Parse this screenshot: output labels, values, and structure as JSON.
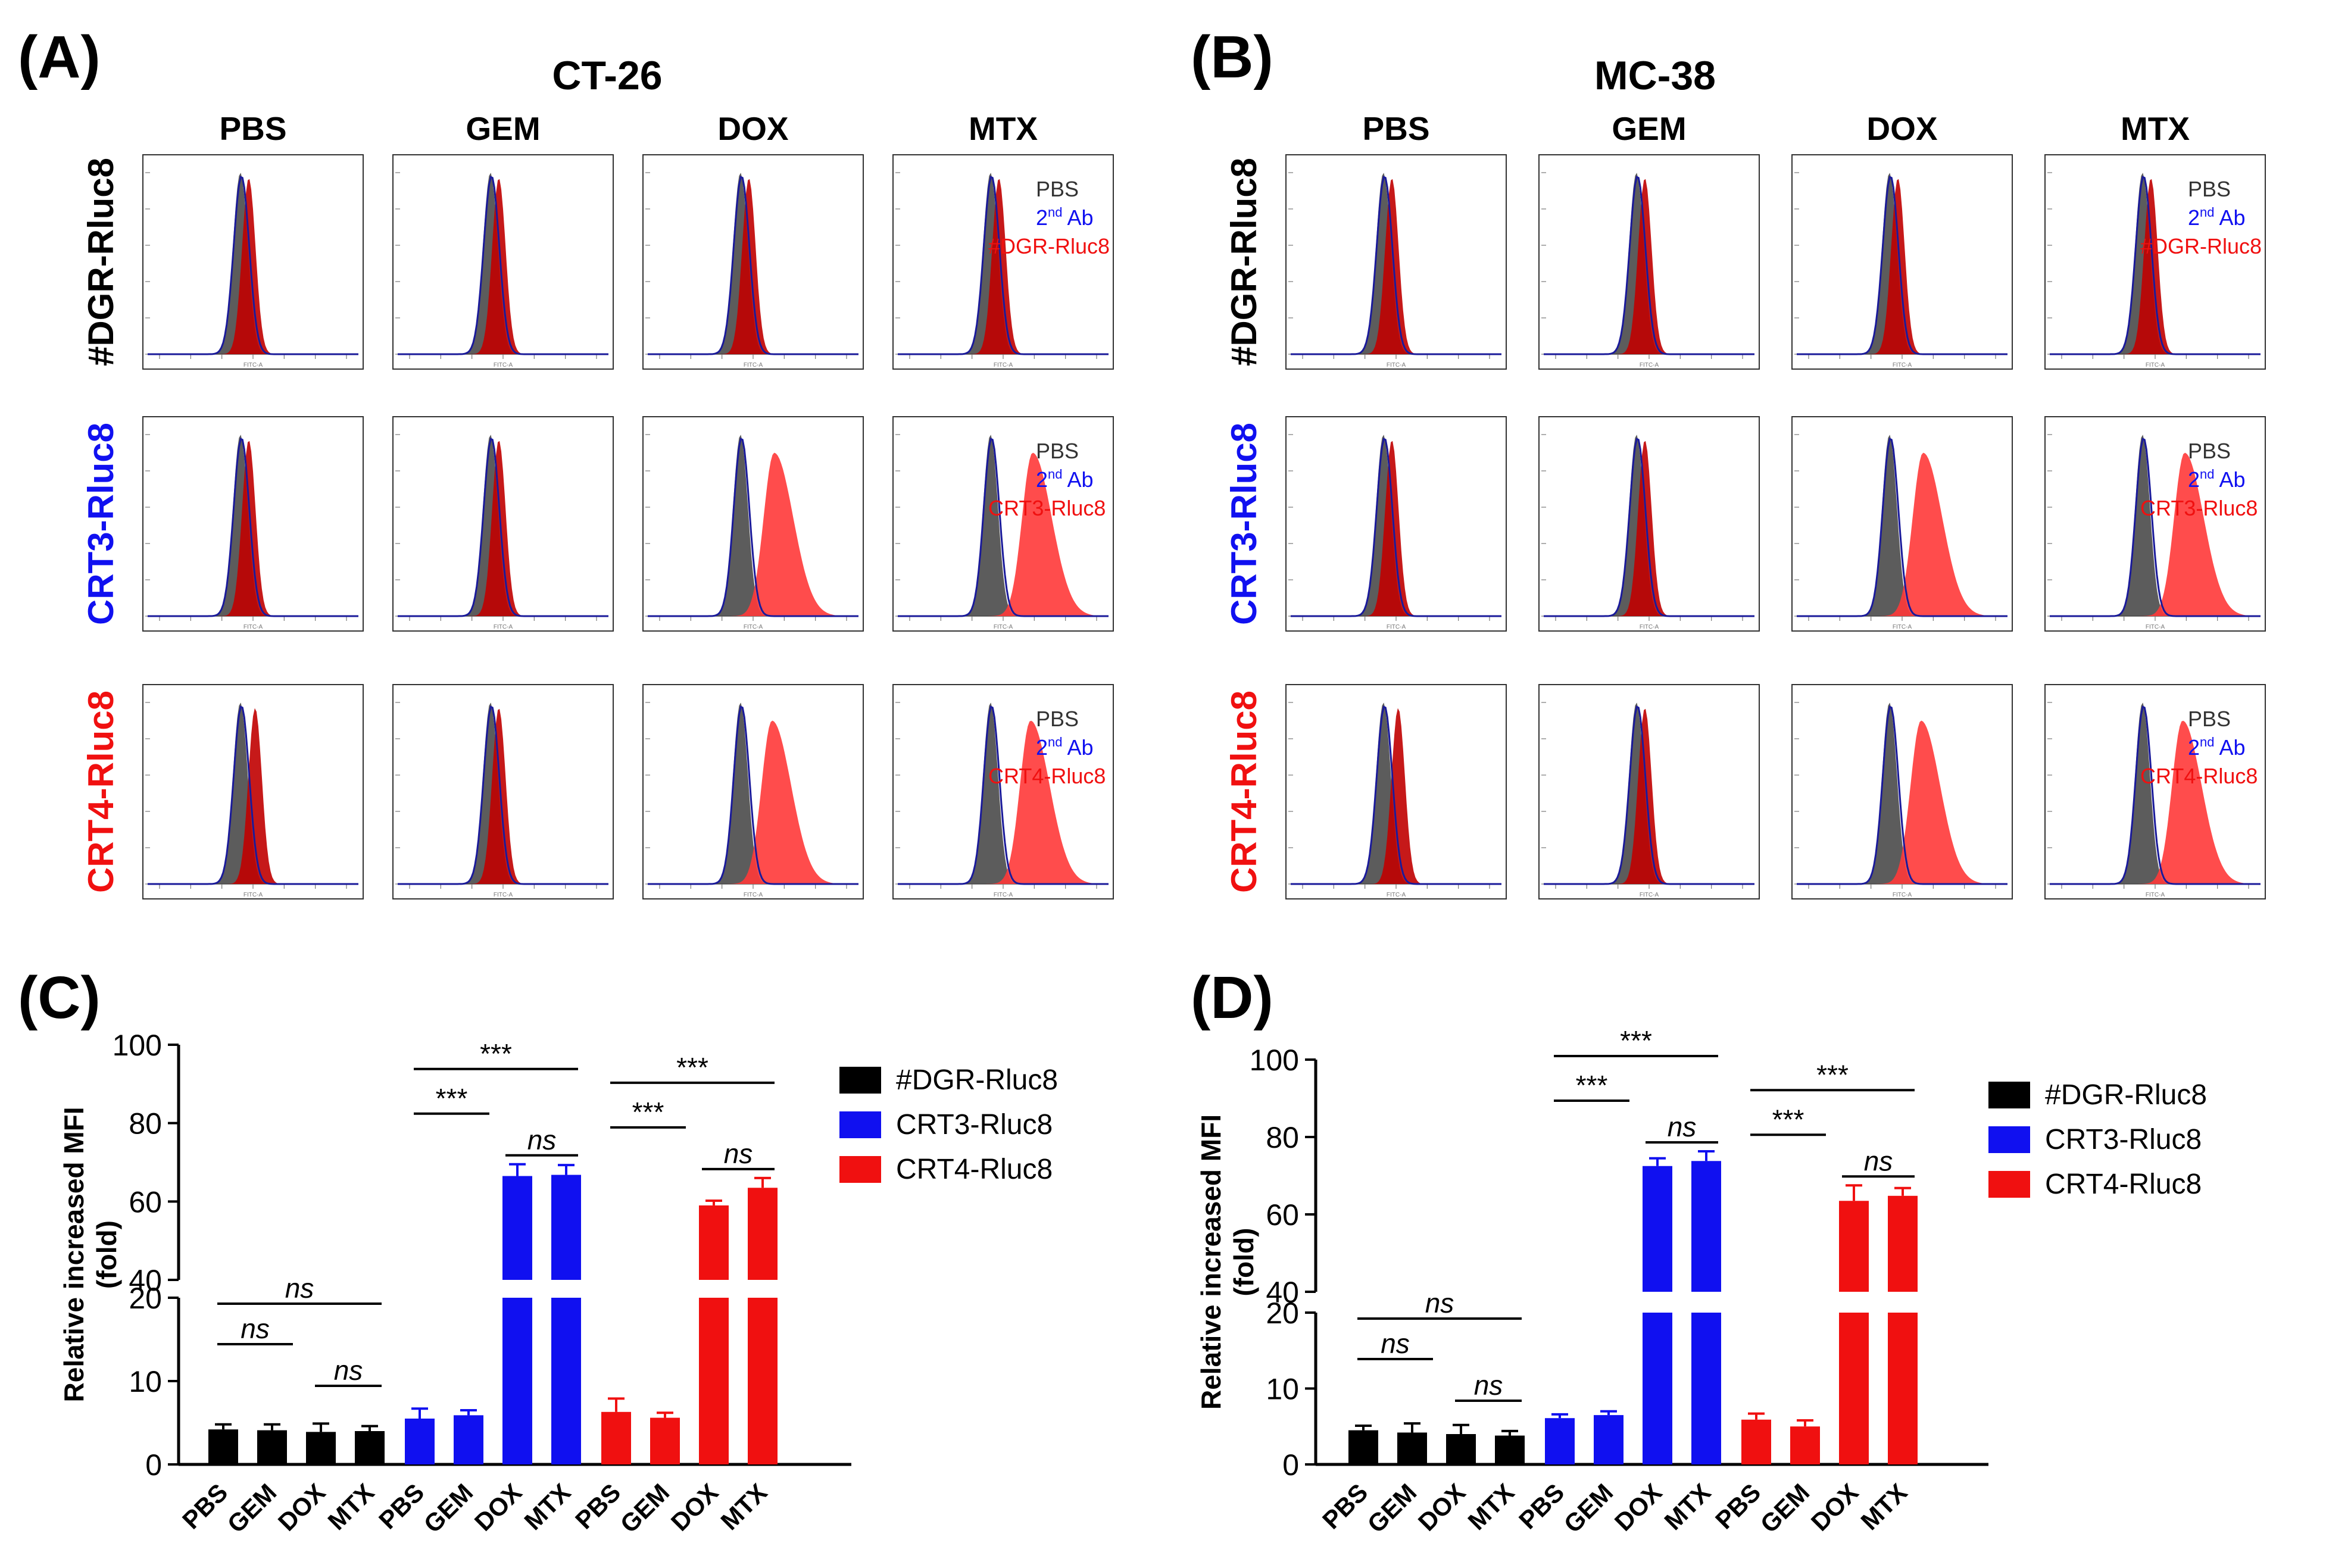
{
  "figure": {
    "panel_letters": {
      "A": "(A)",
      "B": "(B)",
      "C": "(C)",
      "D": "(D)"
    },
    "colors": {
      "probe_1": "#000000",
      "probe_2": "#1010f0",
      "probe_3": "#f01010",
      "pbs_fill": "#404040",
      "sample_fill": "#c00000",
      "shift_fill": "#ff3838",
      "ab_line": "#1a1a9a"
    }
  },
  "chart_data": [
    {
      "type": "histogram-grid",
      "panel": "A",
      "title": "CT-26",
      "columns": [
        "PBS",
        "GEM",
        "DOX",
        "MTX"
      ],
      "rows": [
        "#DGR-Rluc8",
        "CRT3-Rluc8",
        "CRT4-Rluc8"
      ],
      "axis_label": "FITC-A",
      "legend": [
        "PBS",
        "2nd Ab",
        "#DGR-Rluc8",
        "CRT3-Rluc8",
        "CRT4-Rluc8"
      ],
      "legend_sup": "nd",
      "legend_base": "2",
      "legend_ab": "Ab"
    },
    {
      "type": "histogram-grid",
      "panel": "B",
      "title": "MC-38",
      "columns": [
        "PBS",
        "GEM",
        "DOX",
        "MTX"
      ],
      "rows": [
        "#DGR-Rluc8",
        "CRT3-Rluc8",
        "CRT4-Rluc8"
      ],
      "axis_label": "FITC-A",
      "legend": [
        "PBS",
        "2nd Ab",
        "#DGR-Rluc8",
        "CRT3-Rluc8",
        "CRT4-Rluc8"
      ],
      "legend_sup": "nd",
      "legend_base": "2",
      "legend_ab": "Ab"
    },
    {
      "type": "bar",
      "panel": "C",
      "ylabel": "Relative increased MFI",
      "ylabel2": "(fold)",
      "categories": [
        "PBS",
        "GEM",
        "DOX",
        "MTX"
      ],
      "y_break": [
        20,
        40
      ],
      "ylim_low": [
        0,
        20
      ],
      "ylim_high": [
        40,
        100
      ],
      "yticks_low": [
        0,
        10,
        20
      ],
      "yticks_high": [
        40,
        60,
        80,
        100
      ],
      "series": [
        {
          "name": "#DGR-Rluc8",
          "values": [
            4.2,
            4.1,
            3.9,
            4.0
          ],
          "errors": [
            0.6,
            0.7,
            1.0,
            0.6
          ]
        },
        {
          "name": "CRT3-Rluc8",
          "values": [
            5.5,
            5.9,
            66.5,
            66.8
          ],
          "errors": [
            1.2,
            0.6,
            3.0,
            2.5
          ]
        },
        {
          "name": "CRT4-Rluc8",
          "values": [
            6.3,
            5.6,
            59.0,
            63.5
          ],
          "errors": [
            1.6,
            0.6,
            1.2,
            2.5
          ]
        }
      ],
      "annotations": [
        "ns",
        "ns",
        "ns",
        "***",
        "***",
        "ns",
        "***",
        "***",
        "ns"
      ]
    },
    {
      "type": "bar",
      "panel": "D",
      "ylabel": "Relative increased MFI",
      "ylabel2": "(fold)",
      "categories": [
        "PBS",
        "GEM",
        "DOX",
        "MTX"
      ],
      "y_break": [
        20,
        40
      ],
      "ylim_low": [
        0,
        20
      ],
      "ylim_high": [
        40,
        100
      ],
      "yticks_low": [
        0,
        10,
        20
      ],
      "yticks_high": [
        40,
        60,
        80,
        100
      ],
      "series": [
        {
          "name": "#DGR-Rluc8",
          "values": [
            4.5,
            4.2,
            4.0,
            3.8
          ],
          "errors": [
            0.6,
            1.2,
            1.2,
            0.6
          ]
        },
        {
          "name": "CRT3-Rluc8",
          "values": [
            6.1,
            6.5,
            72.5,
            73.8
          ],
          "errors": [
            0.5,
            0.5,
            2.0,
            2.5
          ]
        },
        {
          "name": "CRT4-Rluc8",
          "values": [
            5.9,
            5.0,
            63.5,
            64.8
          ],
          "errors": [
            0.8,
            0.8,
            4.0,
            2.0
          ]
        }
      ],
      "annotations": [
        "ns",
        "ns",
        "ns",
        "***",
        "***",
        "ns",
        "***",
        "***",
        "ns"
      ]
    }
  ]
}
